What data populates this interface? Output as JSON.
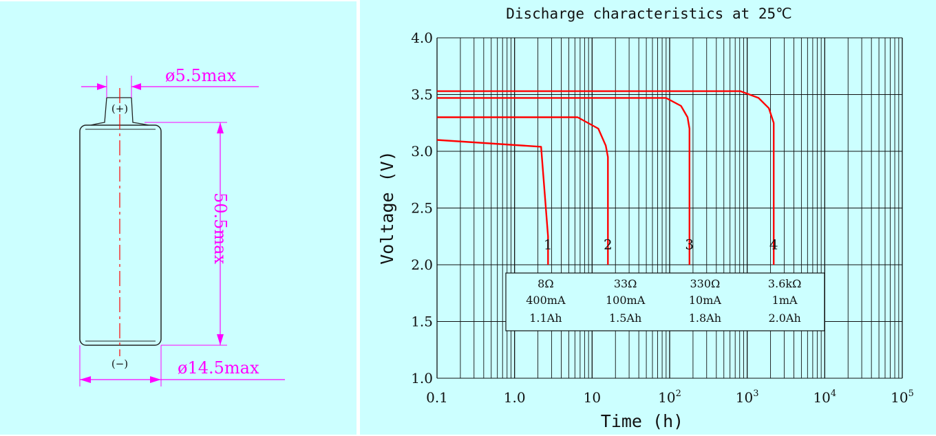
{
  "drawing": {
    "dim_top": "ø5.5max",
    "dim_length": "50.5max",
    "dim_diameter": "ø14.5max",
    "terminal_positive": "(+)",
    "terminal_negative": "(−)",
    "line_color": "#ff00ff",
    "centerline_color": "#ff0000"
  },
  "chart_data": {
    "type": "line",
    "title": "Discharge characteristics at 25℃",
    "xlabel": "Time (h)",
    "ylabel": "Voltage (V)",
    "x_scale": "log",
    "xlim": [
      0.1,
      100000
    ],
    "ylim": [
      1.0,
      4.0
    ],
    "grid": true,
    "x_ticks": [
      {
        "value": 0.1,
        "base": "0.1",
        "exp": ""
      },
      {
        "value": 1,
        "base": "1.0",
        "exp": ""
      },
      {
        "value": 10,
        "base": "10",
        "exp": ""
      },
      {
        "value": 100,
        "base": "10",
        "exp": "2"
      },
      {
        "value": 1000,
        "base": "10",
        "exp": "3"
      },
      {
        "value": 10000,
        "base": "10",
        "exp": "4"
      },
      {
        "value": 100000,
        "base": "10",
        "exp": "5"
      }
    ],
    "y_ticks": [
      "1.0",
      "1.5",
      "2.0",
      "2.5",
      "3.0",
      "3.5",
      "4.0"
    ],
    "line_color": "#ff0000",
    "series": [
      {
        "name": "1",
        "points": [
          [
            0.1,
            3.1
          ],
          [
            2.2,
            3.04
          ],
          [
            2.7,
            2.25
          ],
          [
            2.7,
            2.0
          ]
        ]
      },
      {
        "name": "2",
        "points": [
          [
            0.1,
            3.3
          ],
          [
            6.5,
            3.3
          ],
          [
            12,
            3.2
          ],
          [
            15,
            3.05
          ],
          [
            16,
            2.95
          ],
          [
            16,
            2.0
          ]
        ]
      },
      {
        "name": "3",
        "points": [
          [
            0.1,
            3.47
          ],
          [
            90,
            3.47
          ],
          [
            140,
            3.4
          ],
          [
            170,
            3.3
          ],
          [
            180,
            3.2
          ],
          [
            180,
            2.0
          ]
        ]
      },
      {
        "name": "4",
        "points": [
          [
            0.1,
            3.53
          ],
          [
            820,
            3.53
          ],
          [
            1400,
            3.47
          ],
          [
            1900,
            3.38
          ],
          [
            2200,
            3.25
          ],
          [
            2200,
            2.0
          ]
        ]
      }
    ],
    "series_label_y": 2.18,
    "legend_table": {
      "placement": "bottom-center",
      "columns": [
        {
          "resistance": "8Ω",
          "current": "400mA",
          "capacity": "1.1Ah"
        },
        {
          "resistance": "33Ω",
          "current": "100mA",
          "capacity": "1.5Ah"
        },
        {
          "resistance": "330Ω",
          "current": "10mA",
          "capacity": "1.8Ah"
        },
        {
          "resistance": "3.6kΩ",
          "current": "1mA",
          "capacity": "2.0Ah"
        }
      ]
    }
  }
}
